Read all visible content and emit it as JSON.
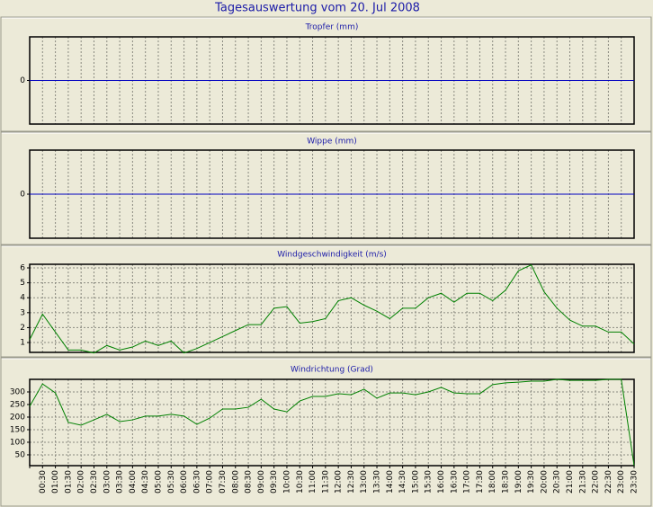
{
  "title": "Tagesauswertung vom 20. Jul 2008",
  "chart_data": [
    {
      "type": "line",
      "title": "Tropfer (mm)",
      "series": [
        {
          "color": "#0000c0",
          "values": [
            0,
            0,
            0,
            0,
            0,
            0,
            0,
            0,
            0,
            0,
            0,
            0,
            0,
            0,
            0,
            0,
            0,
            0,
            0,
            0,
            0,
            0,
            0,
            0,
            0,
            0,
            0,
            0,
            0,
            0,
            0,
            0,
            0,
            0,
            0,
            0,
            0,
            0,
            0,
            0,
            0,
            0,
            0,
            0,
            0,
            0,
            0,
            0
          ]
        }
      ],
      "ylim": [
        -1,
        1
      ],
      "yticks": [
        0
      ],
      "grid": true
    },
    {
      "type": "line",
      "title": "Wippe (mm)",
      "series": [
        {
          "color": "#0000c0",
          "values": [
            0,
            0,
            0,
            0,
            0,
            0,
            0,
            0,
            0,
            0,
            0,
            0,
            0,
            0,
            0,
            0,
            0,
            0,
            0,
            0,
            0,
            0,
            0,
            0,
            0,
            0,
            0,
            0,
            0,
            0,
            0,
            0,
            0,
            0,
            0,
            0,
            0,
            0,
            0,
            0,
            0,
            0,
            0,
            0,
            0,
            0,
            0,
            0
          ]
        }
      ],
      "ylim": [
        -1,
        1
      ],
      "yticks": [
        0
      ],
      "grid": true
    },
    {
      "type": "line",
      "title": "Windgeschwindigkeit (m/s)",
      "series": [
        {
          "color": "#008000",
          "values": [
            1.2,
            2.9,
            1.7,
            0.5,
            0.5,
            0.3,
            0.8,
            0.5,
            0.7,
            1.1,
            0.8,
            1.1,
            0.3,
            0.6,
            1.0,
            1.4,
            1.8,
            2.2,
            2.2,
            3.3,
            3.4,
            2.3,
            2.4,
            2.6,
            3.8,
            4.0,
            3.5,
            3.1,
            2.6,
            3.3,
            3.3,
            4.0,
            4.3,
            3.7,
            4.3,
            4.3,
            3.8,
            4.5,
            5.8,
            6.2,
            4.4,
            3.3,
            2.5,
            2.1,
            2.1,
            1.7,
            1.7,
            0.9
          ]
        }
      ],
      "ylim": [
        0.34,
        6.24
      ],
      "yticks": [
        1,
        2,
        3,
        4,
        5,
        6
      ],
      "grid": true
    },
    {
      "type": "line",
      "title": "Windrichtung (Grad)",
      "categories": [
        null,
        "00:30",
        "01:00",
        "01:30",
        "02:00",
        "02:30",
        "03:00",
        "03:30",
        "04:00",
        "04:30",
        "05:00",
        "05:30",
        "06:00",
        "06:30",
        "07:00",
        "07:30",
        "08:00",
        "08:30",
        "09:00",
        "09:30",
        "10:00",
        "10:30",
        "11:00",
        "11:30",
        "12:00",
        "12:30",
        "13:00",
        "13:30",
        "14:00",
        "14:30",
        "15:00",
        "15:30",
        "16:00",
        "16:30",
        "17:00",
        "17:30",
        "18:00",
        "18:30",
        "19:00",
        "19:30",
        "20:00",
        "20:30",
        "21:00",
        "21:30",
        "22:00",
        "22:30",
        "23:00",
        "23:30"
      ],
      "series": [
        {
          "color": "#008000",
          "values": [
            243,
            332,
            296,
            179,
            168,
            189,
            211,
            182,
            189,
            204,
            204,
            211,
            204,
            171,
            196,
            232,
            232,
            239,
            271,
            232,
            221,
            264,
            282,
            282,
            293,
            289,
            311,
            275,
            296,
            296,
            289,
            300,
            318,
            296,
            293,
            293,
            329,
            336,
            339,
            343,
            343,
            350,
            346,
            346,
            346,
            350,
            350,
            7
          ]
        }
      ],
      "ylim": [
        7,
        350
      ],
      "yticks": [
        50,
        100,
        150,
        200,
        250,
        300
      ],
      "grid": true
    }
  ]
}
